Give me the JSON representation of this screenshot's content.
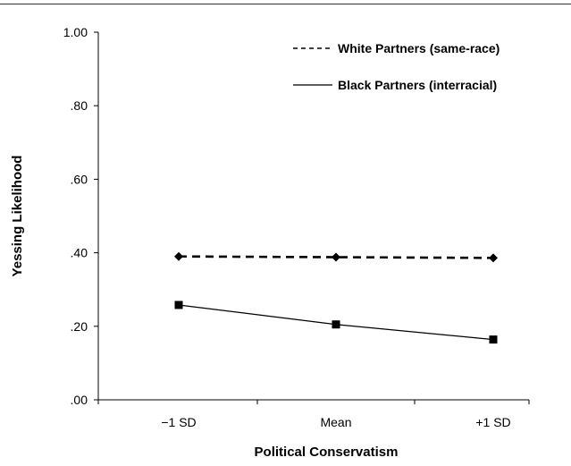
{
  "chart_data": {
    "type": "line",
    "title": "",
    "xlabel": "Political Conservatism",
    "ylabel": "Yessing Likelihood",
    "categories": [
      "−1 SD",
      "Mean",
      "+1 SD"
    ],
    "ylim": [
      0,
      1
    ],
    "yticks": [
      0,
      0.2,
      0.4,
      0.6,
      0.8,
      1.0
    ],
    "ytick_labels": [
      ".00",
      ".20",
      ".40",
      ".60",
      ".80",
      "1.00"
    ],
    "grid": false,
    "legend_position": "top-right",
    "series": [
      {
        "name": "White Partners (same-race)",
        "values": [
          0.39,
          0.388,
          0.386
        ],
        "line_style": "dashed",
        "marker": "diamond",
        "color": "#000000"
      },
      {
        "name": "Black Partners (interracial)",
        "values": [
          0.258,
          0.205,
          0.164
        ],
        "line_style": "solid",
        "marker": "square",
        "color": "#000000"
      }
    ]
  }
}
